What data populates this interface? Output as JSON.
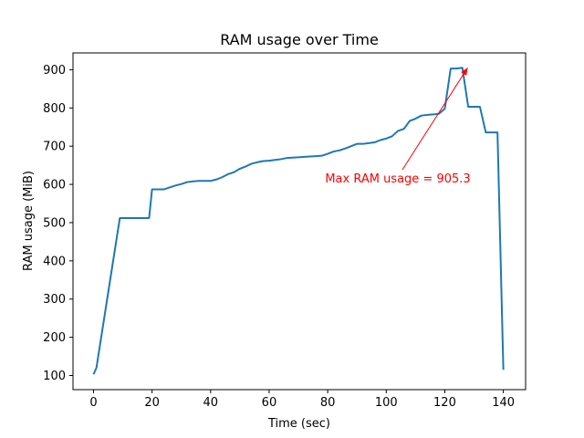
{
  "chart_data": {
    "type": "line",
    "title": "RAM usage over Time",
    "xlabel": "Time (sec)",
    "ylabel": "RAM usage (MiB)",
    "xlim": [
      -7.0,
      147.6
    ],
    "ylim": [
      63,
      944
    ],
    "xticks": [
      0,
      20,
      40,
      60,
      80,
      100,
      120,
      140
    ],
    "yticks": [
      100,
      200,
      300,
      400,
      500,
      600,
      700,
      800,
      900
    ],
    "grid": false,
    "line_color": "#1f77b4",
    "annotation": {
      "text": "Max RAM usage = 905.3",
      "color": "#ff0000",
      "point": [
        127.8,
        905.3
      ],
      "text_anchor_point": [
        105.5,
        638
      ]
    },
    "series": [
      {
        "x": [
          0,
          1,
          9,
          10,
          19,
          20,
          22,
          24,
          26,
          28,
          30,
          32,
          34,
          36,
          38,
          40,
          42,
          44,
          46,
          48,
          50,
          52,
          54,
          56,
          58,
          60,
          62,
          64,
          66,
          68,
          70,
          72,
          74,
          76,
          78,
          80,
          82,
          84,
          86,
          88,
          90,
          92,
          94,
          96,
          98,
          100,
          102,
          104,
          106,
          108,
          110,
          112,
          114,
          116,
          118,
          120,
          122,
          124,
          126,
          128,
          130,
          132,
          134,
          136,
          138,
          140
        ],
        "y": [
          103,
          120,
          512,
          512,
          512,
          587,
          587,
          587,
          592,
          597,
          601,
          606,
          608,
          609,
          609,
          609,
          613,
          619,
          627,
          632,
          641,
          647,
          654,
          658,
          661,
          662,
          664,
          666,
          669,
          670,
          671,
          672,
          673,
          674,
          675,
          680,
          686,
          689,
          694,
          700,
          706,
          706,
          708,
          710,
          716,
          720,
          726,
          740,
          745,
          766,
          772,
          780,
          782,
          783,
          785,
          798,
          903,
          903,
          905.3,
          803,
          803,
          803,
          736,
          736,
          736,
          115
        ]
      }
    ]
  }
}
